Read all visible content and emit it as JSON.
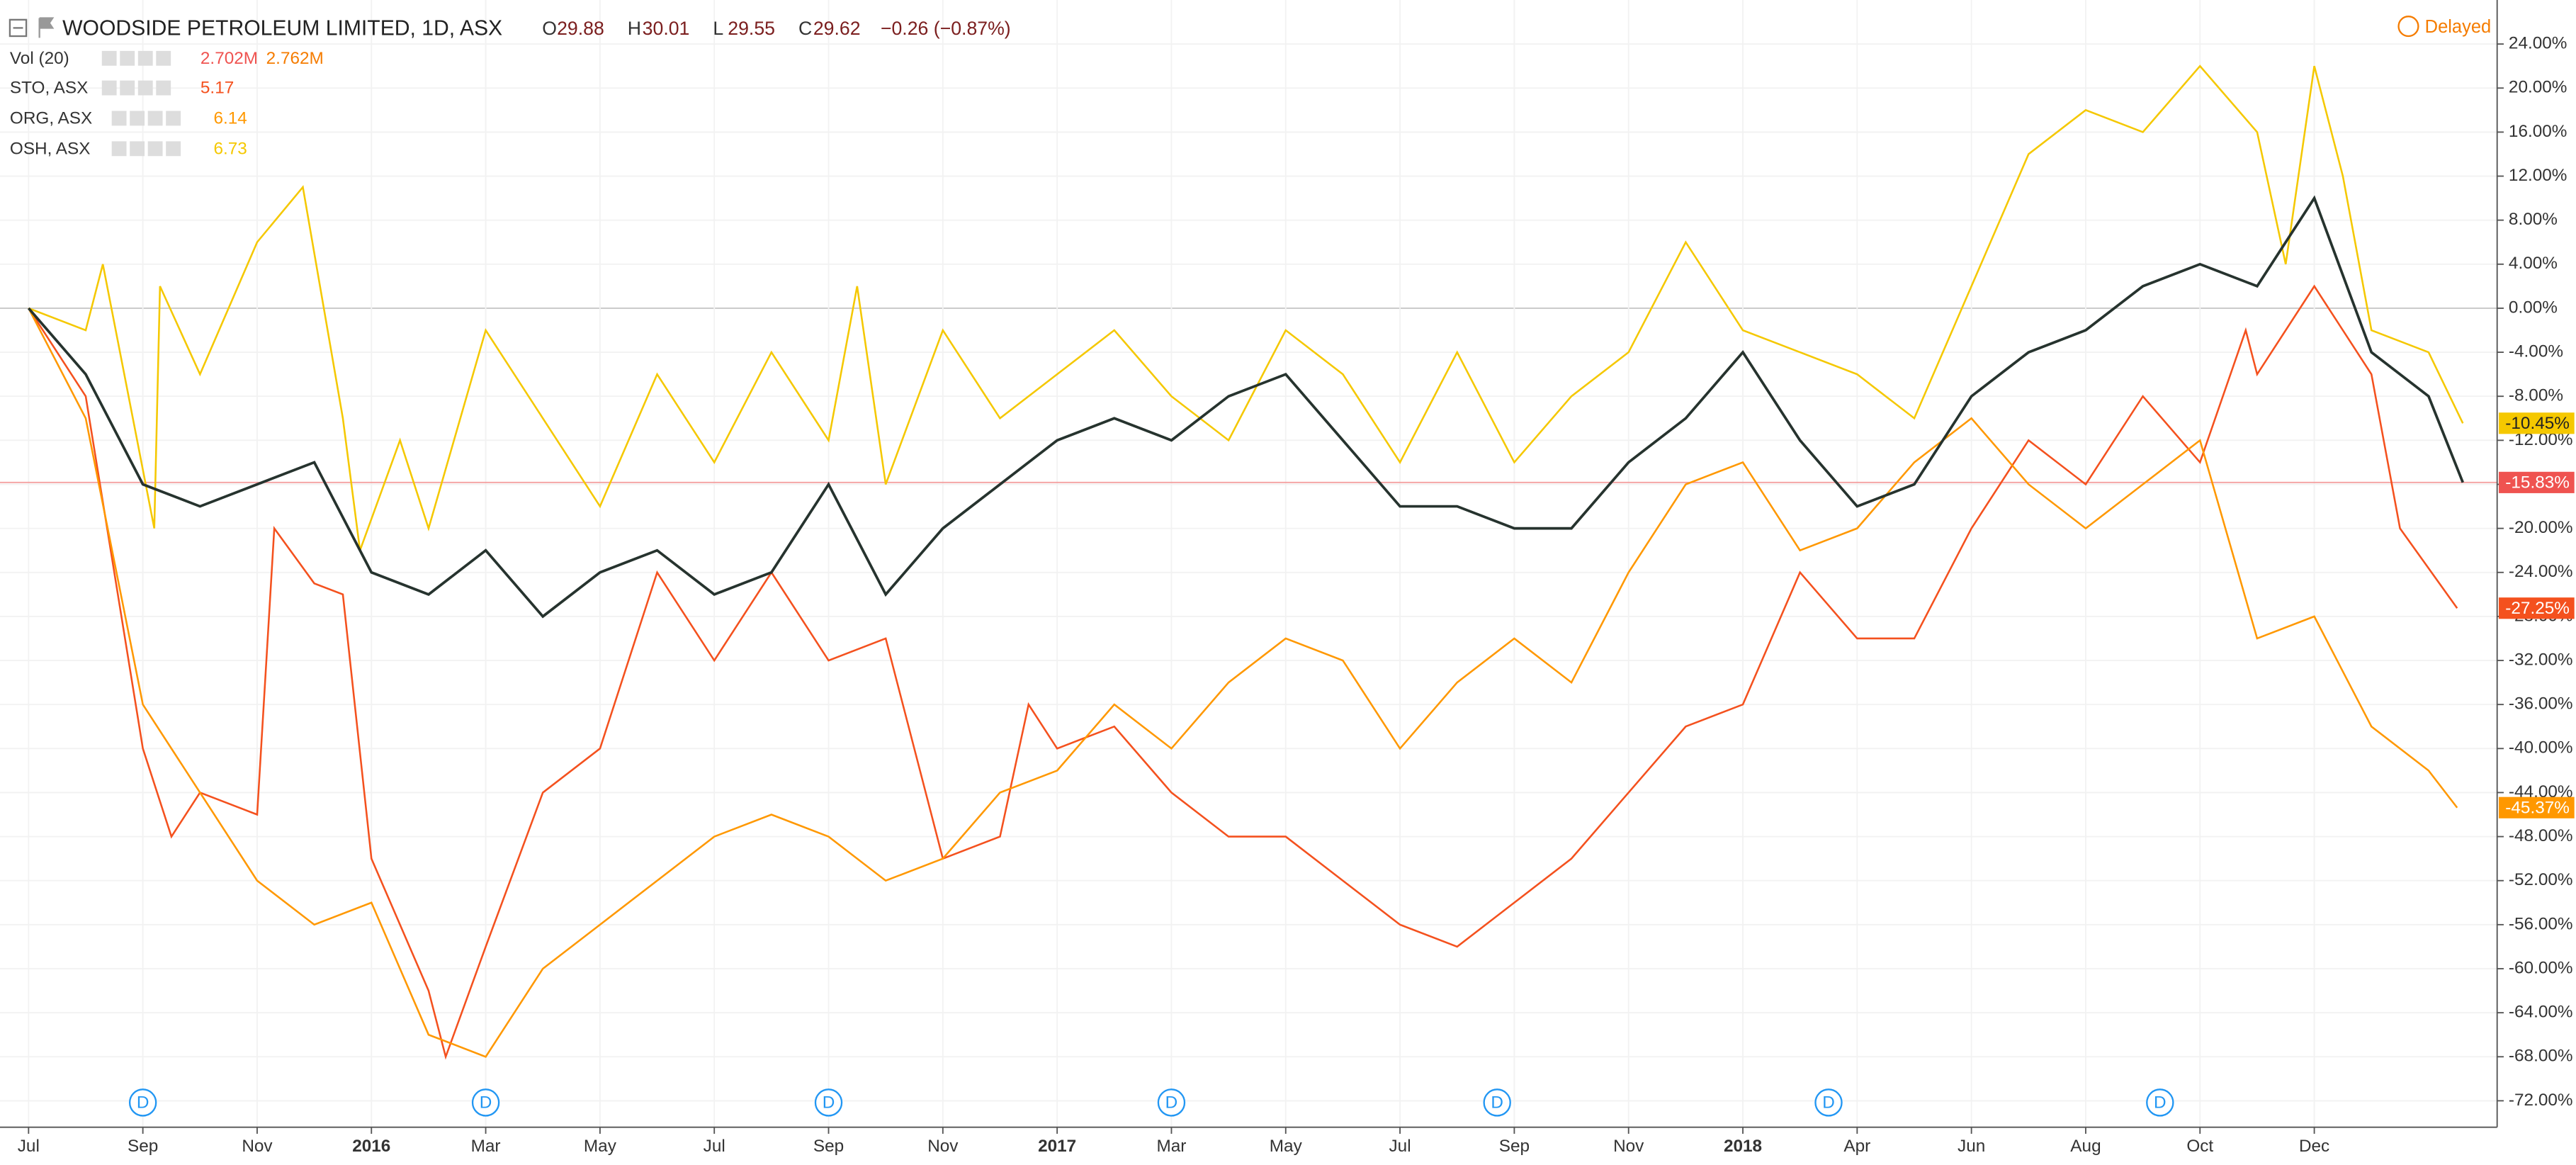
{
  "chart_data": {
    "type": "line",
    "title": "WOODSIDE PETROLEUM LIMITED, 1D, ASX",
    "ohlc": [
      {
        "key": "O",
        "value": "29.88"
      },
      {
        "key": "H",
        "value": "30.01"
      },
      {
        "key": "L",
        "value": "29.55"
      },
      {
        "key": "C",
        "value": "29.62"
      }
    ],
    "change": "−0.26 (−0.87%)",
    "status": "Delayed",
    "indicator": {
      "name": "Vol (20)",
      "values": [
        "2.702M",
        "2.762M"
      ]
    },
    "compare_legend": [
      {
        "name": "STO, ASX",
        "price": "5.17",
        "color": "#f4511e"
      },
      {
        "name": "ORG, ASX",
        "price": "6.14",
        "color": "#ff9800"
      },
      {
        "name": "OSH, ASX",
        "price": "6.73",
        "color": "#f5c800"
      }
    ],
    "xlim": [
      -0.5,
      43.2
    ],
    "ylim": [
      -74.4,
      28
    ],
    "xticks": [
      {
        "value": 0,
        "label": "Jul"
      },
      {
        "value": 2,
        "label": "Sep"
      },
      {
        "value": 4,
        "label": "Nov"
      },
      {
        "value": 6,
        "label": "2016"
      },
      {
        "value": 8,
        "label": "Mar"
      },
      {
        "value": 10,
        "label": "May"
      },
      {
        "value": 12,
        "label": "Jul"
      },
      {
        "value": 14,
        "label": "Sep"
      },
      {
        "value": 16,
        "label": "Nov"
      },
      {
        "value": 18,
        "label": "2017"
      },
      {
        "value": 20,
        "label": "Mar"
      },
      {
        "value": 22,
        "label": "May"
      },
      {
        "value": 24,
        "label": "Jul"
      },
      {
        "value": 26,
        "label": "Sep"
      },
      {
        "value": 28,
        "label": "Nov"
      },
      {
        "value": 30,
        "label": "2018"
      },
      {
        "value": 32,
        "label": "Apr"
      },
      {
        "value": 34,
        "label": "Jun"
      },
      {
        "value": 36,
        "label": "Aug"
      },
      {
        "value": 38,
        "label": "Oct"
      },
      {
        "value": 40,
        "label": "Dec"
      }
    ],
    "yticks": [
      {
        "value": 24,
        "label": "24.00%"
      },
      {
        "value": 20,
        "label": "20.00%"
      },
      {
        "value": 16,
        "label": "16.00%"
      },
      {
        "value": 12,
        "label": "12.00%"
      },
      {
        "value": 8,
        "label": "8.00%"
      },
      {
        "value": 4,
        "label": "4.00%"
      },
      {
        "value": 0,
        "label": "0.00%"
      },
      {
        "value": -4,
        "label": "-4.00%"
      },
      {
        "value": -8,
        "label": "-8.00%"
      },
      {
        "value": -12,
        "label": "-12.00%"
      },
      {
        "value": -16,
        "label": "-16.00%"
      },
      {
        "value": -20,
        "label": "-20.00%"
      },
      {
        "value": -24,
        "label": "-24.00%"
      },
      {
        "value": -28,
        "label": "-28.00%"
      },
      {
        "value": -32,
        "label": "-32.00%"
      },
      {
        "value": -36,
        "label": "-36.00%"
      },
      {
        "value": -40,
        "label": "-40.00%"
      },
      {
        "value": -44,
        "label": "-44.00%"
      },
      {
        "value": -48,
        "label": "-48.00%"
      },
      {
        "value": -52,
        "label": "-52.00%"
      },
      {
        "value": -56,
        "label": "-56.00%"
      },
      {
        "value": -60,
        "label": "-60.00%"
      },
      {
        "value": -64,
        "label": "-64.00%"
      },
      {
        "value": -68,
        "label": "-68.00%"
      },
      {
        "value": -72,
        "label": "-72.00%"
      }
    ],
    "grid": true,
    "events": [
      {
        "x": 2,
        "label": "D"
      },
      {
        "x": 8,
        "label": "D"
      },
      {
        "x": 14,
        "label": "D"
      },
      {
        "x": 20,
        "label": "D"
      },
      {
        "x": 25.7,
        "label": "D"
      },
      {
        "x": 31.5,
        "label": "D"
      },
      {
        "x": 37.3,
        "label": "D"
      }
    ],
    "series": [
      {
        "name": "OSH",
        "color": "#f5c800",
        "last_label": "-10.45%",
        "x": [
          0,
          1,
          1.3,
          2.2,
          2.3,
          3,
          4,
          4.8,
          5.5,
          5.8,
          6.5,
          7,
          8,
          9,
          10,
          11,
          12,
          13,
          14,
          14.5,
          15,
          16,
          17,
          18,
          19,
          20,
          21,
          22,
          23,
          24,
          25,
          26,
          27,
          28,
          29,
          30,
          31,
          32,
          33,
          34,
          35,
          36,
          37,
          38,
          39,
          39.5,
          40,
          40.5,
          41,
          42,
          42.6
        ],
        "values": [
          0,
          -2,
          4,
          -20,
          2,
          -6,
          6,
          11,
          -10,
          -22,
          -12,
          -20,
          -2,
          -10,
          -18,
          -6,
          -14,
          -4,
          -12,
          2,
          -16,
          -2,
          -10,
          -6,
          -2,
          -8,
          -12,
          -2,
          -6,
          -14,
          -4,
          -14,
          -8,
          -4,
          6,
          -2,
          -4,
          -6,
          -10,
          2,
          14,
          18,
          16,
          22,
          16,
          4,
          22,
          12,
          -2,
          -4,
          -10.45
        ]
      },
      {
        "name": "STO",
        "color": "#f4511e",
        "last_label": "-27.25%",
        "x": [
          0,
          1,
          2,
          2.5,
          3,
          4,
          4.3,
          5,
          5.5,
          6,
          7,
          7.3,
          8,
          9,
          10,
          11,
          12,
          13,
          14,
          15,
          15.5,
          16,
          17,
          17.5,
          18,
          19,
          20,
          21,
          22,
          23,
          24,
          25,
          26,
          27,
          28,
          29,
          30,
          31,
          32,
          33,
          34,
          35,
          36,
          37,
          38,
          38.8,
          39,
          40,
          41,
          41.5,
          42.5
        ],
        "values": [
          0,
          -8,
          -40,
          -48,
          -44,
          -46,
          -20,
          -25,
          -26,
          -50,
          -62,
          -68,
          -58,
          -44,
          -40,
          -24,
          -32,
          -24,
          -32,
          -30,
          -40,
          -50,
          -48,
          -36,
          -40,
          -38,
          -44,
          -48,
          -48,
          -52,
          -56,
          -58,
          -54,
          -50,
          -44,
          -38,
          -36,
          -24,
          -30,
          -30,
          -20,
          -12,
          -16,
          -8,
          -14,
          -2,
          -6,
          2,
          -6,
          -20,
          -27.25
        ]
      },
      {
        "name": "ORG",
        "color": "#ff9800",
        "last_label": "-45.37%",
        "x": [
          0,
          1,
          2,
          3,
          4,
          5,
          6,
          6.5,
          7,
          8,
          9,
          10,
          11,
          12,
          13,
          14,
          15,
          16,
          17,
          18,
          19,
          20,
          21,
          22,
          23,
          24,
          25,
          26,
          27,
          28,
          29,
          30,
          31,
          32,
          33,
          34,
          35,
          36,
          37,
          38,
          39,
          40,
          41,
          42,
          42.5
        ],
        "values": [
          0,
          -10,
          -36,
          -44,
          -52,
          -56,
          -54,
          -60,
          -66,
          -68,
          -60,
          -56,
          -52,
          -48,
          -46,
          -48,
          -52,
          -50,
          -44,
          -42,
          -36,
          -40,
          -34,
          -30,
          -32,
          -40,
          -34,
          -30,
          -34,
          -24,
          -16,
          -14,
          -22,
          -20,
          -14,
          -10,
          -16,
          -20,
          -16,
          -12,
          -30,
          -28,
          -38,
          -42,
          -45.37
        ]
      },
      {
        "name": "WOODSIDE PETROLEUM LIMITED",
        "color": "#26332e",
        "last_label": "-15.83%",
        "x": [
          0,
          1,
          2,
          3,
          4,
          5,
          6,
          7,
          8,
          9,
          10,
          11,
          12,
          13,
          14,
          15,
          16,
          17,
          18,
          19,
          20,
          21,
          22,
          23,
          24,
          25,
          26,
          27,
          28,
          29,
          30,
          31,
          32,
          33,
          34,
          35,
          36,
          37,
          38,
          39,
          40,
          41,
          42,
          42.6
        ],
        "values": [
          0,
          -6,
          -16,
          -18,
          -16,
          -14,
          -24,
          -26,
          -22,
          -28,
          -24,
          -22,
          -26,
          -24,
          -16,
          -26,
          -20,
          -16,
          -12,
          -10,
          -12,
          -8,
          -6,
          -12,
          -18,
          -18,
          -20,
          -20,
          -14,
          -10,
          -4,
          -12,
          -18,
          -16,
          -8,
          -4,
          -2,
          2,
          4,
          2,
          10,
          -4,
          -8,
          -15.83
        ]
      }
    ]
  }
}
